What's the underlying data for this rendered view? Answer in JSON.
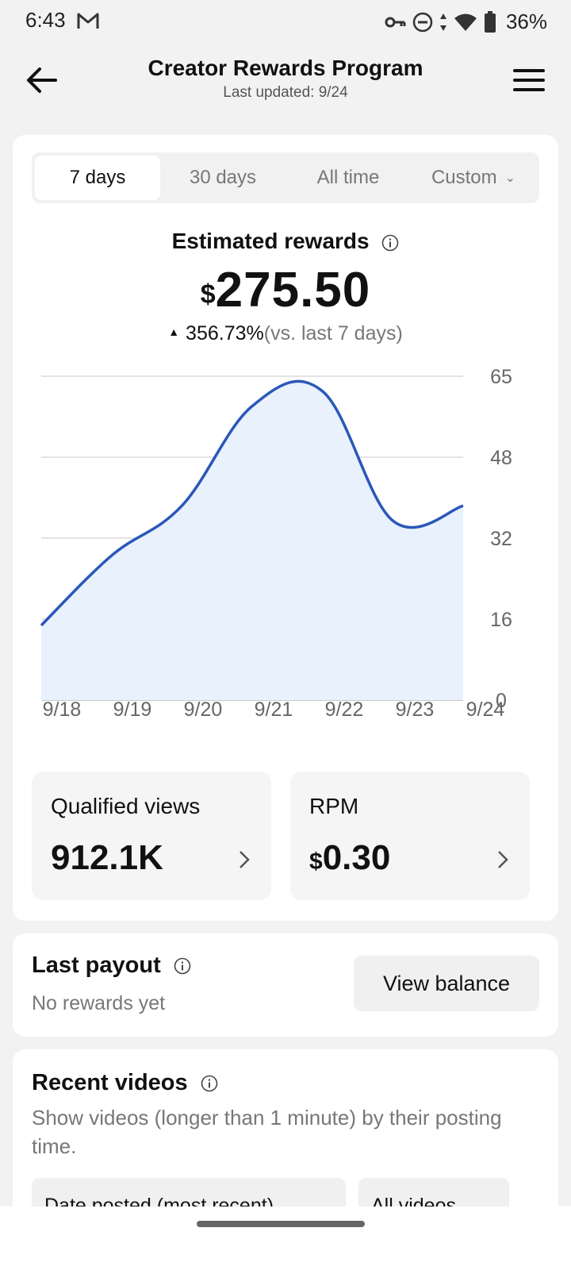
{
  "status_bar": {
    "time": "6:43",
    "battery": "36%"
  },
  "header": {
    "title": "Creator Rewards Program",
    "subtitle": "Last updated: 9/24"
  },
  "tabs": [
    {
      "label": "7 days",
      "active": true
    },
    {
      "label": "30 days",
      "active": false
    },
    {
      "label": "All time",
      "active": false
    },
    {
      "label": "Custom",
      "active": false
    }
  ],
  "estimated": {
    "title": "Estimated rewards",
    "currency": "$",
    "amount": "275.50",
    "change": "356.73%",
    "comparison": "(vs. last 7 days)"
  },
  "chart_data": {
    "type": "area",
    "x": [
      "9/18",
      "9/19",
      "9/20",
      "9/21",
      "9/22",
      "9/23",
      "9/24"
    ],
    "y_ticks": [
      "65",
      "48",
      "32",
      "16",
      "0"
    ],
    "ylim": [
      0,
      65
    ],
    "values": [
      15,
      29,
      39,
      59,
      62,
      36,
      39
    ],
    "grid": true,
    "line_color": "#2a57b8",
    "fill_color": "#e8f1fc"
  },
  "metrics": {
    "views_label": "Qualified views",
    "views_value": "912.1K",
    "rpm_label": "RPM",
    "rpm_currency": "$",
    "rpm_value": "0.30"
  },
  "payout": {
    "title": "Last payout",
    "subtitle": "No rewards yet",
    "button": "View balance"
  },
  "videos": {
    "title": "Recent videos",
    "description": "Show videos (longer than 1 minute) by their posting time.",
    "filter_date": "Date posted (most recent)",
    "filter_all": "All videos"
  }
}
